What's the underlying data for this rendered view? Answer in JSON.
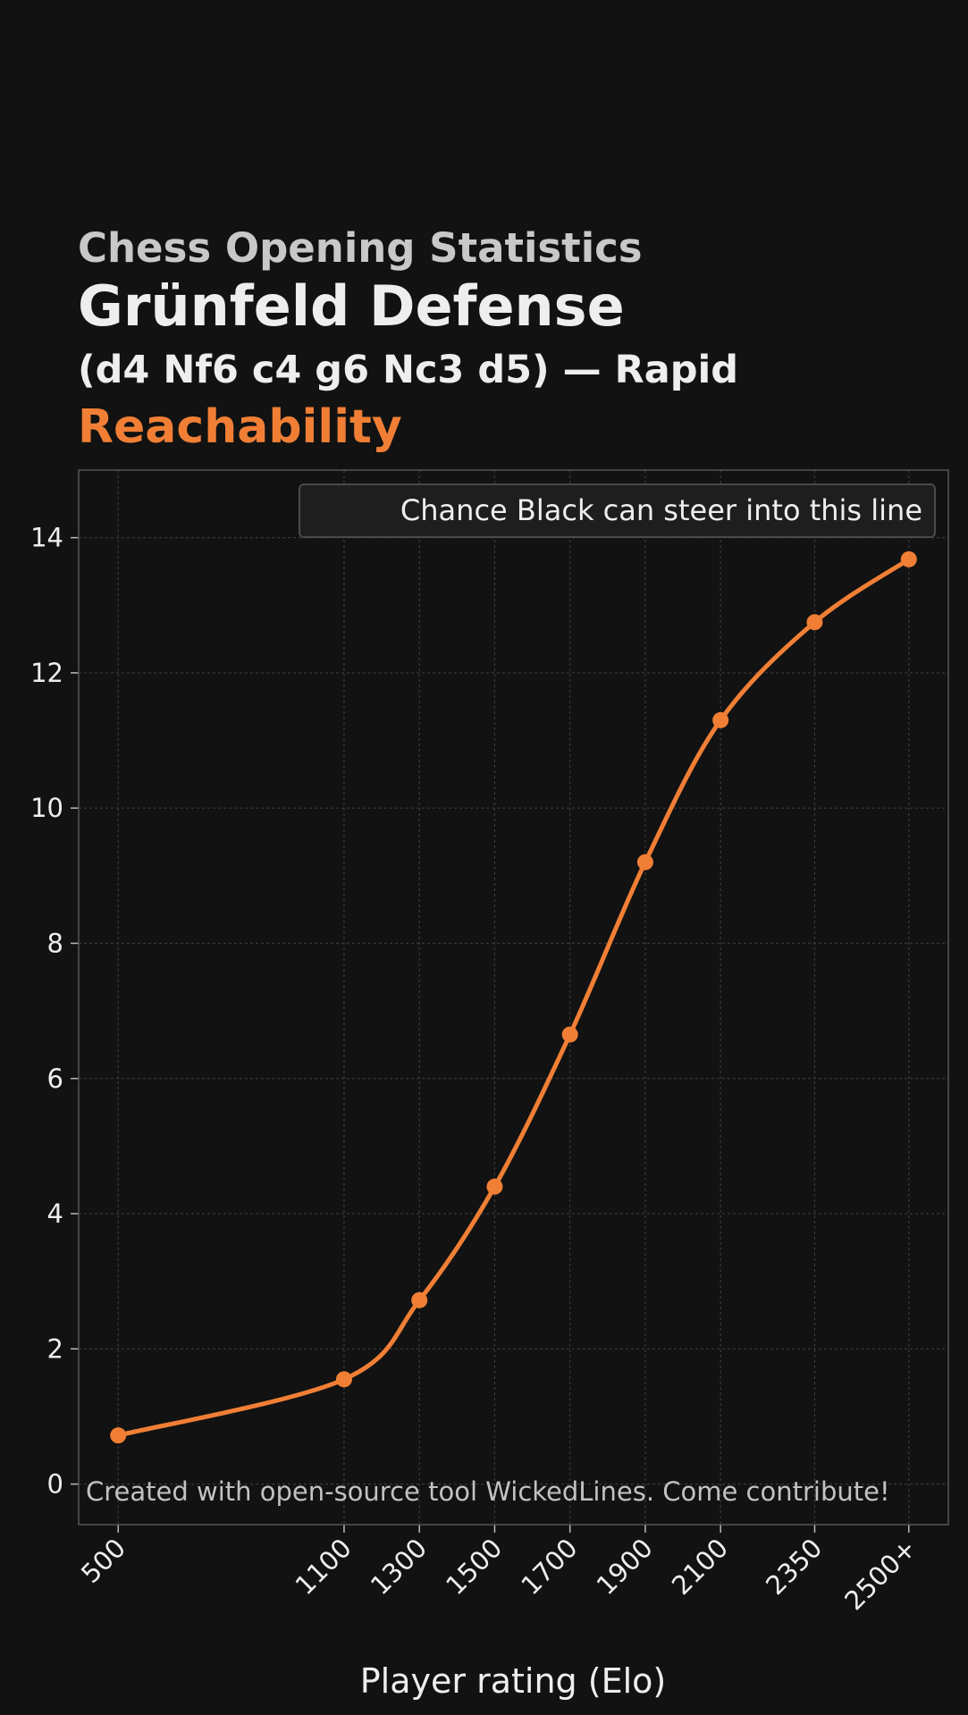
{
  "header": {
    "kicker": "Chess Opening Statistics",
    "opening": "Grünfeld Defense",
    "moves": "(d4 Nf6 c4 g6 Nc3 d5) — Rapid",
    "metric": "Reachability"
  },
  "colors": {
    "background": "#121212",
    "accent": "#f07f35",
    "text": "#eeeeee",
    "kicker_text": "#c8c8c8",
    "grid": "#3a3a3a",
    "frame": "#555555"
  },
  "chart_data": {
    "type": "line",
    "title": "Reachability",
    "xlabel": "Player rating (Elo)",
    "ylabel": "",
    "categories": [
      "500",
      "1100",
      "1300",
      "1500",
      "1700",
      "1900",
      "2100",
      "2350",
      "2500+"
    ],
    "x": [
      500,
      1100,
      1300,
      1500,
      1700,
      1900,
      2100,
      2350,
      2600
    ],
    "ylim": [
      -0.6,
      15
    ],
    "yticks": [
      0,
      2,
      4,
      6,
      8,
      10,
      12,
      14
    ],
    "xlim": [
      395,
      2705
    ],
    "grid": true,
    "legend_position": "top-right",
    "series": [
      {
        "name": "Chance Black can steer into this line",
        "color": "#f07f35",
        "smooth": true,
        "markers": true,
        "values": [
          0.72,
          1.55,
          2.72,
          4.4,
          6.65,
          9.2,
          11.3,
          12.75,
          13.68
        ]
      }
    ],
    "annotation": "Created with open-source tool WickedLines. Come contribute!"
  }
}
